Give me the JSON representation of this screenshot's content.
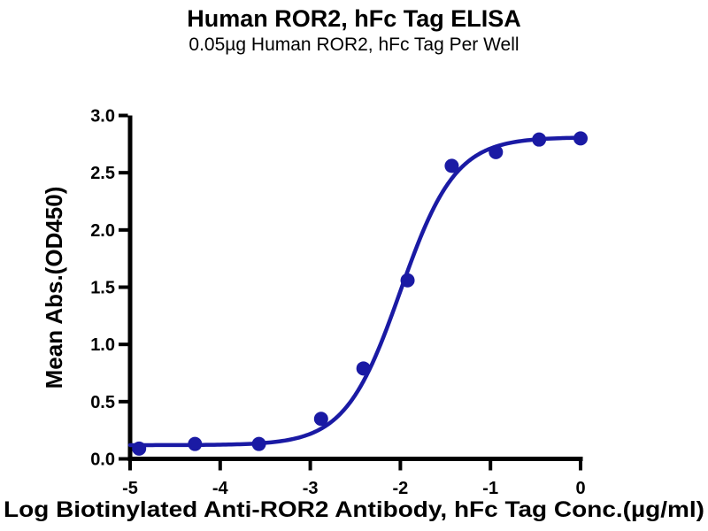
{
  "page": {
    "background_color": "#ffffff",
    "text_color": "#000000"
  },
  "chart_data": {
    "type": "scatter",
    "title": "Human ROR2, hFc Tag ELISA",
    "subtitle": "0.05µg Human ROR2, hFc Tag Per Well",
    "xlabel": "Log Biotinylated Anti-ROR2 Antibody, hFc Tag Conc.(µg/ml)",
    "ylabel": "Mean Abs.(OD450)",
    "xlim": [
      -5,
      0
    ],
    "ylim": [
      0.0,
      3.0
    ],
    "xticks": [
      {
        "value": -5,
        "label": "-5"
      },
      {
        "value": -4,
        "label": "-4"
      },
      {
        "value": -3,
        "label": "-3"
      },
      {
        "value": -2,
        "label": "-2"
      },
      {
        "value": -1,
        "label": "-1"
      },
      {
        "value": 0,
        "label": "0"
      }
    ],
    "yticks": [
      {
        "value": 0.0,
        "label": "0.0"
      },
      {
        "value": 0.5,
        "label": "0.5"
      },
      {
        "value": 1.0,
        "label": "1.0"
      },
      {
        "value": 1.5,
        "label": "1.5"
      },
      {
        "value": 2.0,
        "label": "2.0"
      },
      {
        "value": 2.5,
        "label": "2.5"
      },
      {
        "value": 3.0,
        "label": "3.0"
      }
    ],
    "grid": false,
    "legend": null,
    "marker_color": "#1a1aa4",
    "curve_color": "#1a1aa4",
    "axis_color": "#000000",
    "points": [
      {
        "x": -4.9,
        "y": 0.09
      },
      {
        "x": -4.28,
        "y": 0.13
      },
      {
        "x": -3.57,
        "y": 0.13
      },
      {
        "x": -2.88,
        "y": 0.35
      },
      {
        "x": -2.41,
        "y": 0.79
      },
      {
        "x": -1.92,
        "y": 1.56
      },
      {
        "x": -1.43,
        "y": 2.56
      },
      {
        "x": -0.94,
        "y": 2.68
      },
      {
        "x": -0.46,
        "y": 2.79
      },
      {
        "x": 0.0,
        "y": 2.8
      }
    ],
    "fit_curve": {
      "model": "four-parameter-logistic",
      "bottom": 0.12,
      "top": 2.81,
      "logEC50": -2.0,
      "hillslope": 1.42,
      "x_start": -5,
      "x_end": 0
    }
  }
}
